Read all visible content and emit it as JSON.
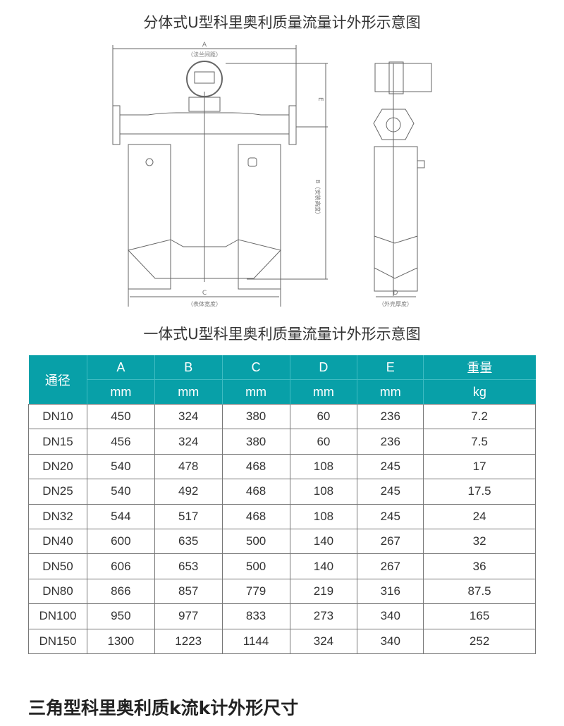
{
  "titles": {
    "split": "分体式U型科里奥利质量流量计外形示意图",
    "integrated": "一体式U型科里奥利质量流量计外形示意图",
    "triangle": "三角型科里奥利质k流k计外形尺寸"
  },
  "drawing": {
    "dim_a": "A",
    "dim_a_note": "（法兰间距）",
    "dim_b": "B（安装高度）",
    "dim_e": "E",
    "dim_c": "C",
    "dim_c_note": "（表体宽度）",
    "dim_d": "D",
    "dim_d_note": "（外壳厚度）"
  },
  "table": {
    "header_color": "#08a0a8",
    "headers": [
      {
        "name": "通径",
        "unit": ""
      },
      {
        "name": "A",
        "unit": "mm"
      },
      {
        "name": "B",
        "unit": "mm"
      },
      {
        "name": "C",
        "unit": "mm"
      },
      {
        "name": "D",
        "unit": "mm"
      },
      {
        "name": "E",
        "unit": "mm"
      },
      {
        "name": "重量",
        "unit": "kg"
      }
    ],
    "rows": [
      [
        "DN10",
        "450",
        "324",
        "380",
        "60",
        "236",
        "7.2"
      ],
      [
        "DN15",
        "456",
        "324",
        "380",
        "60",
        "236",
        "7.5"
      ],
      [
        "DN20",
        "540",
        "478",
        "468",
        "108",
        "245",
        "17"
      ],
      [
        "DN25",
        "540",
        "492",
        "468",
        "108",
        "245",
        "17.5"
      ],
      [
        "DN32",
        "544",
        "517",
        "468",
        "108",
        "245",
        "24"
      ],
      [
        "DN40",
        "600",
        "635",
        "500",
        "140",
        "267",
        "32"
      ],
      [
        "DN50",
        "606",
        "653",
        "500",
        "140",
        "267",
        "36"
      ],
      [
        "DN80",
        "866",
        "857",
        "779",
        "219",
        "316",
        "87.5"
      ],
      [
        "DN100",
        "950",
        "977",
        "833",
        "273",
        "340",
        "165"
      ],
      [
        "DN150",
        "1300",
        "1223",
        "1144",
        "324",
        "340",
        "252"
      ]
    ]
  }
}
